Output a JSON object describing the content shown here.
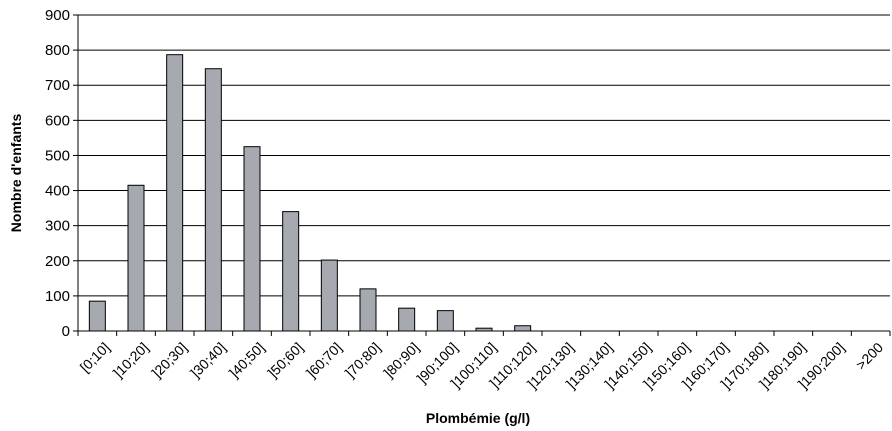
{
  "chart_data": {
    "type": "bar",
    "title": "",
    "xlabel": "Plombémie (g/l)",
    "ylabel": "Nombre d'enfants",
    "ylim": [
      0,
      900
    ],
    "yticks": [
      0,
      100,
      200,
      300,
      400,
      500,
      600,
      700,
      800,
      900
    ],
    "grid": true,
    "bar_color": "#a6aab0",
    "categories": [
      "[0;10]",
      "]10;20]",
      "]20;30]",
      "]30;40]",
      "]40;50]",
      "]50;60]",
      "]60;70]",
      "]70;80]",
      "]80;90]",
      "]90;100]",
      "]100;110]",
      "]110;120]",
      "]120;130]",
      "]130;140]",
      "]140;150]",
      "]150;160]",
      "]160;170]",
      "]170;180]",
      "]180;190]",
      "]190;200]",
      ">200"
    ],
    "values": [
      85,
      415,
      787,
      747,
      525,
      340,
      202,
      120,
      65,
      58,
      8,
      15,
      0,
      0,
      0,
      0,
      0,
      0,
      0,
      0,
      0
    ]
  }
}
